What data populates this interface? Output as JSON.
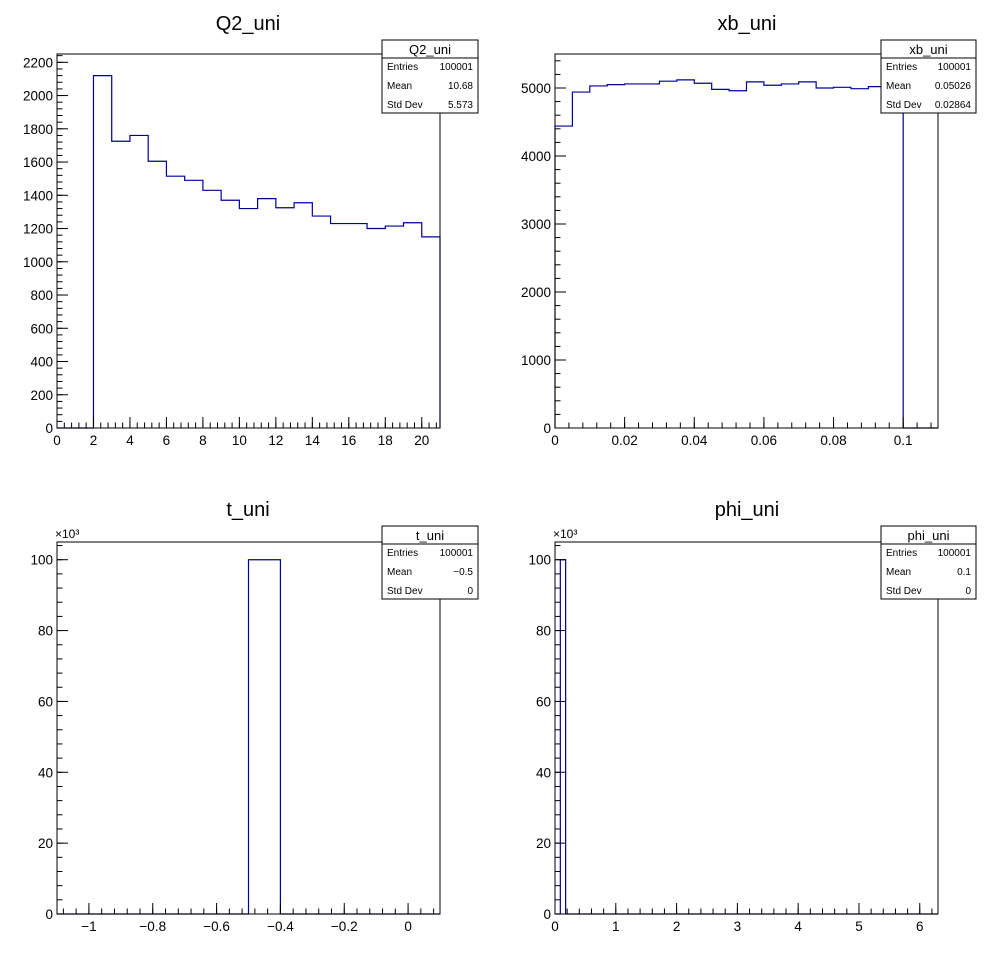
{
  "chart_data": [
    {
      "type": "bar",
      "title": "Q2_uni",
      "style": "step-histogram",
      "line_color": "#000099",
      "xlim": [
        0,
        21
      ],
      "ylim": [
        0,
        2250
      ],
      "x_ticks": [
        0,
        2,
        4,
        6,
        8,
        10,
        12,
        14,
        16,
        18,
        20
      ],
      "x_tick_labels": [
        "0",
        "2",
        "4",
        "6",
        "8",
        "10",
        "12",
        "14",
        "16",
        "18",
        "20"
      ],
      "y_ticks": [
        0,
        200,
        400,
        600,
        800,
        1000,
        1200,
        1400,
        1600,
        1800,
        2000,
        2200
      ],
      "y_tick_labels": [
        "0",
        "200",
        "400",
        "600",
        "800",
        "1000",
        "1200",
        "1400",
        "1600",
        "1800",
        "2000",
        "2200"
      ],
      "bin_edges": [
        0,
        1,
        2,
        3,
        4,
        5,
        6,
        7,
        8,
        9,
        10,
        11,
        12,
        13,
        14,
        15,
        16,
        17,
        18,
        19,
        20,
        21
      ],
      "values": [
        0,
        0,
        2120,
        1725,
        1760,
        1605,
        1515,
        1490,
        1430,
        1370,
        1320,
        1380,
        1325,
        1355,
        1275,
        1230,
        1230,
        1200,
        1215,
        1235,
        1150
      ],
      "stats": {
        "name": "Q2_uni",
        "rows": [
          {
            "label": "Entries",
            "value": "100001"
          },
          {
            "label": "Mean",
            "value": "10.68"
          },
          {
            "label": "Std Dev",
            "value": "5.573"
          }
        ]
      }
    },
    {
      "type": "bar",
      "title": "xb_uni",
      "style": "step-histogram",
      "line_color": "#000099",
      "xlim": [
        0,
        0.11
      ],
      "ylim": [
        0,
        5500
      ],
      "x_ticks": [
        0,
        0.02,
        0.04,
        0.06,
        0.08,
        0.1
      ],
      "x_tick_labels": [
        "0",
        "0.02",
        "0.04",
        "0.06",
        "0.08",
        "0.1"
      ],
      "y_ticks": [
        0,
        1000,
        2000,
        3000,
        4000,
        5000
      ],
      "y_tick_labels": [
        "0",
        "1000",
        "2000",
        "3000",
        "4000",
        "5000"
      ],
      "bin_edges": [
        0,
        0.005,
        0.01,
        0.015,
        0.02,
        0.025,
        0.03,
        0.035,
        0.04,
        0.045,
        0.05,
        0.055,
        0.06,
        0.065,
        0.07,
        0.075,
        0.08,
        0.085,
        0.09,
        0.095,
        0.1,
        0.105,
        0.11
      ],
      "values": [
        4440,
        4940,
        5030,
        5050,
        5060,
        5060,
        5100,
        5120,
        5070,
        4980,
        4960,
        5090,
        5040,
        5060,
        5090,
        5000,
        5010,
        4990,
        5020,
        5030,
        0,
        0
      ],
      "stats": {
        "name": "xb_uni",
        "rows": [
          {
            "label": "Entries",
            "value": "100001"
          },
          {
            "label": "Mean",
            "value": "0.05026"
          },
          {
            "label": "Std Dev",
            "value": "0.02864"
          }
        ]
      }
    },
    {
      "type": "bar",
      "title": "t_uni",
      "style": "step-histogram",
      "line_color": "#000099",
      "xlim": [
        -1.1,
        0.1
      ],
      "ylim": [
        0,
        105
      ],
      "y_exponent": "×10³",
      "x_ticks": [
        -1,
        -0.8,
        -0.6,
        -0.4,
        -0.2,
        0
      ],
      "x_tick_labels": [
        "−1",
        "−0.8",
        "−0.6",
        "−0.4",
        "−0.2",
        "0"
      ],
      "y_ticks": [
        0,
        20,
        40,
        60,
        80,
        100
      ],
      "y_tick_labels": [
        "0",
        "20",
        "40",
        "60",
        "80",
        "100"
      ],
      "bin_edges": [
        -1.1,
        -1.0,
        -0.9,
        -0.8,
        -0.7,
        -0.6,
        -0.5,
        -0.4,
        -0.3,
        -0.2,
        -0.1,
        0,
        0.1
      ],
      "values": [
        0,
        0,
        0,
        0,
        0,
        0,
        100,
        0,
        0,
        0,
        0,
        0
      ],
      "stats": {
        "name": "t_uni",
        "rows": [
          {
            "label": "Entries",
            "value": "100001"
          },
          {
            "label": "Mean",
            "value": "−0.5"
          },
          {
            "label": "Std Dev",
            "value": "0"
          }
        ]
      }
    },
    {
      "type": "bar",
      "title": "phi_uni",
      "style": "step-histogram",
      "line_color": "#000099",
      "xlim": [
        0,
        6.3
      ],
      "ylim": [
        0,
        105
      ],
      "y_exponent": "×10³",
      "x_ticks": [
        0,
        1,
        2,
        3,
        4,
        5,
        6
      ],
      "x_tick_labels": [
        "0",
        "1",
        "2",
        "3",
        "4",
        "5",
        "6"
      ],
      "y_ticks": [
        0,
        20,
        40,
        60,
        80,
        100
      ],
      "y_tick_labels": [
        "0",
        "20",
        "40",
        "60",
        "80",
        "100"
      ],
      "bin_edges": [
        0,
        0.0875,
        0.175,
        6.3
      ],
      "values": [
        0,
        100,
        0
      ],
      "stats": {
        "name": "phi_uni",
        "rows": [
          {
            "label": "Entries",
            "value": "100001"
          },
          {
            "label": "Mean",
            "value": "0.1"
          },
          {
            "label": "Std Dev",
            "value": "0"
          }
        ]
      }
    }
  ]
}
